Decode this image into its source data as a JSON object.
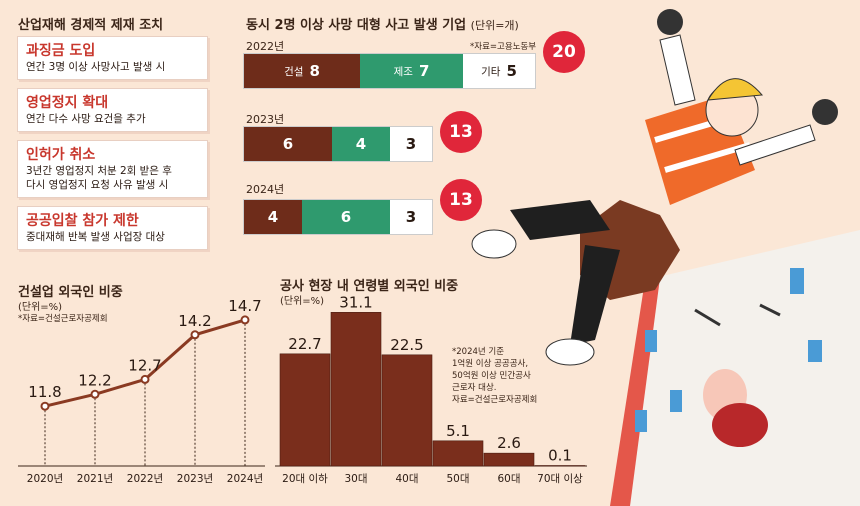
{
  "measures": {
    "title": "산업재해 경제적 제재 조치",
    "items": [
      {
        "title": "과징금 도입",
        "lines": [
          "연간 3명 이상 사망사고 발생 시"
        ]
      },
      {
        "title": "영업정지 확대",
        "lines": [
          "연간 다수 사망 요건을 추가"
        ]
      },
      {
        "title": "인허가 취소",
        "lines": [
          "3년간 영업정지 처분 2회 받은 후",
          "다시 영업정지 요청 사유 발생 시"
        ]
      },
      {
        "title": "공공입찰 참가 제한",
        "lines": [
          "중대재해 반복 발생 사업장 대상"
        ]
      }
    ]
  },
  "accidents": {
    "title": "동시 2명 이상 사망 대형 사고 발생 기업",
    "unit": "(단위=개)",
    "source": "*자료=고용노동부",
    "categories": [
      "건설",
      "제조",
      "기타"
    ],
    "colors": {
      "con": "#6e2c1a",
      "mfg": "#2f9a6e",
      "etc": "#ffffff",
      "badge": "#e0263a"
    },
    "years": [
      {
        "year": "2022년",
        "values": [
          8,
          7,
          5
        ],
        "total": "20"
      },
      {
        "year": "2023년",
        "values": [
          6,
          4,
          3
        ],
        "total": "13"
      },
      {
        "year": "2024년",
        "values": [
          4,
          6,
          3
        ],
        "total": "13"
      }
    ]
  },
  "chart_data": [
    {
      "type": "line",
      "title": "건설업 외국인 비중",
      "unit": "(단위=%)",
      "source": "*자료=건설근로자공제회",
      "x": [
        "2020년",
        "2021년",
        "2022년",
        "2023년",
        "2024년"
      ],
      "values": [
        11.8,
        12.2,
        12.7,
        14.2,
        14.7
      ],
      "ylim": [
        11.0,
        15.2
      ],
      "color": "#8a3a22"
    },
    {
      "type": "bar",
      "title": "공사 현장 내 연령별 외국인 비중",
      "unit": "(단위=%)",
      "categories": [
        "20대 이하",
        "30대",
        "40대",
        "50대",
        "60대",
        "70대 이상"
      ],
      "values": [
        22.7,
        31.1,
        22.5,
        5.1,
        2.6,
        0.1
      ],
      "ylim": [
        0,
        34
      ],
      "color": "#7a2e1c",
      "note": [
        "*2024년 기준",
        "1억원 이상 공공공사,",
        "50억원 이상 민간공사",
        "근로자 대상.",
        "자료=건설근로자공제회"
      ]
    }
  ]
}
